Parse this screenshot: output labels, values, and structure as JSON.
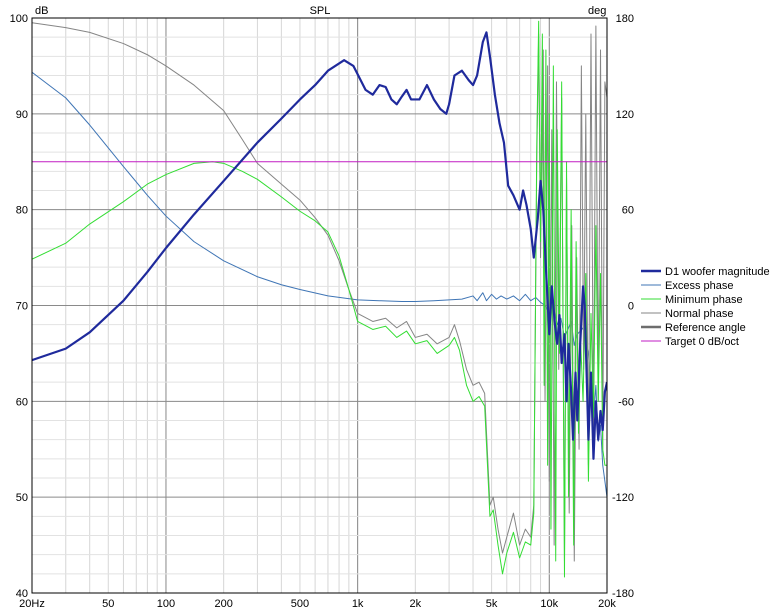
{
  "chart_data": {
    "type": "line",
    "title": "SPL",
    "ylabel_left": "dB",
    "ylabel_right": "deg",
    "x_scale": "log",
    "xlim": [
      20,
      20000
    ],
    "ylim_left": [
      40,
      100
    ],
    "ylim_right": [
      -180,
      180
    ],
    "grid": true,
    "legend_position": "right",
    "x_ticks": [
      {
        "v": 20,
        "label": "20Hz"
      },
      {
        "v": 50,
        "label": "50"
      },
      {
        "v": 100,
        "label": "100"
      },
      {
        "v": 200,
        "label": "200"
      },
      {
        "v": 500,
        "label": "500"
      },
      {
        "v": 1000,
        "label": "1k"
      },
      {
        "v": 2000,
        "label": "2k"
      },
      {
        "v": 5000,
        "label": "5k"
      },
      {
        "v": 10000,
        "label": "10k"
      },
      {
        "v": 20000,
        "label": "20k"
      }
    ],
    "y_ticks_left": [
      {
        "v": 40,
        "label": "40"
      },
      {
        "v": 50,
        "label": "50"
      },
      {
        "v": 60,
        "label": "60"
      },
      {
        "v": 70,
        "label": "70"
      },
      {
        "v": 80,
        "label": "80"
      },
      {
        "v": 90,
        "label": "90"
      },
      {
        "v": 100,
        "label": "100"
      }
    ],
    "y_ticks_right": [
      {
        "v": -180,
        "label": "-180"
      },
      {
        "v": -120,
        "label": "-120"
      },
      {
        "v": -60,
        "label": "-60"
      },
      {
        "v": 0,
        "label": "0"
      },
      {
        "v": 60,
        "label": "60"
      },
      {
        "v": 120,
        "label": "120"
      },
      {
        "v": 180,
        "label": "180"
      }
    ],
    "series": [
      {
        "name": "D1 woofer magnitude",
        "axis": "left",
        "color": "#1f2a9c",
        "width": 2.2,
        "points": [
          [
            20,
            64.3
          ],
          [
            30,
            65.5
          ],
          [
            40,
            67.2
          ],
          [
            60,
            70.5
          ],
          [
            80,
            73.5
          ],
          [
            100,
            76
          ],
          [
            140,
            79.5
          ],
          [
            200,
            83
          ],
          [
            300,
            87
          ],
          [
            400,
            89.5
          ],
          [
            500,
            91.5
          ],
          [
            600,
            93
          ],
          [
            700,
            94.5
          ],
          [
            850,
            95.6
          ],
          [
            950,
            95
          ],
          [
            1100,
            92.5
          ],
          [
            1200,
            92
          ],
          [
            1300,
            93
          ],
          [
            1400,
            92.8
          ],
          [
            1500,
            91.5
          ],
          [
            1600,
            91
          ],
          [
            1700,
            91.8
          ],
          [
            1800,
            92.5
          ],
          [
            1900,
            91.5
          ],
          [
            2100,
            91.5
          ],
          [
            2300,
            93
          ],
          [
            2500,
            91.5
          ],
          [
            2700,
            90.5
          ],
          [
            2900,
            90
          ],
          [
            3000,
            91
          ],
          [
            3200,
            94
          ],
          [
            3500,
            94.5
          ],
          [
            3800,
            93.5
          ],
          [
            4000,
            93
          ],
          [
            4200,
            94
          ],
          [
            4500,
            97.5
          ],
          [
            4700,
            98.5
          ],
          [
            4900,
            96
          ],
          [
            5200,
            92
          ],
          [
            5500,
            89
          ],
          [
            5800,
            87
          ],
          [
            6100,
            82.5
          ],
          [
            6500,
            81.5
          ],
          [
            7000,
            80
          ],
          [
            7300,
            82
          ],
          [
            7600,
            80.5
          ],
          [
            8000,
            78
          ],
          [
            8300,
            75
          ],
          [
            8700,
            79
          ],
          [
            9000,
            83
          ],
          [
            9300,
            80
          ],
          [
            9600,
            74
          ],
          [
            10000,
            67
          ],
          [
            10300,
            72
          ],
          [
            10700,
            68
          ],
          [
            11000,
            66
          ],
          [
            11300,
            69
          ],
          [
            11600,
            64
          ],
          [
            12000,
            67
          ],
          [
            12300,
            60
          ],
          [
            12600,
            66
          ],
          [
            13000,
            61
          ],
          [
            13300,
            56
          ],
          [
            13700,
            63
          ],
          [
            14000,
            58
          ],
          [
            14500,
            66
          ],
          [
            15000,
            72
          ],
          [
            15300,
            70
          ],
          [
            15700,
            62
          ],
          [
            16000,
            56
          ],
          [
            16500,
            63
          ],
          [
            17000,
            54
          ],
          [
            17500,
            60
          ],
          [
            18000,
            56
          ],
          [
            18500,
            59
          ],
          [
            19000,
            57
          ],
          [
            19500,
            61
          ],
          [
            20000,
            62
          ]
        ]
      },
      {
        "name": "Excess phase",
        "axis": "right",
        "color": "#3f75b5",
        "width": 1,
        "points": [
          [
            20,
            146
          ],
          [
            30,
            130
          ],
          [
            40,
            113
          ],
          [
            60,
            87
          ],
          [
            80,
            69
          ],
          [
            100,
            56
          ],
          [
            140,
            40
          ],
          [
            200,
            28
          ],
          [
            300,
            18
          ],
          [
            400,
            13
          ],
          [
            500,
            10
          ],
          [
            700,
            6
          ],
          [
            1000,
            3.5
          ],
          [
            1300,
            3
          ],
          [
            1700,
            2.5
          ],
          [
            2000,
            2.5
          ],
          [
            2500,
            3
          ],
          [
            3000,
            3.5
          ],
          [
            3500,
            4
          ],
          [
            4000,
            6
          ],
          [
            4200,
            3
          ],
          [
            4500,
            8
          ],
          [
            4700,
            3
          ],
          [
            5000,
            7
          ],
          [
            5300,
            4
          ],
          [
            5600,
            6
          ],
          [
            6000,
            4
          ],
          [
            6500,
            6
          ],
          [
            7000,
            3
          ],
          [
            7500,
            7
          ],
          [
            8000,
            3
          ],
          [
            8500,
            5
          ],
          [
            9000,
            2
          ],
          [
            9500,
            0
          ],
          [
            10000,
            -6
          ],
          [
            10500,
            2
          ],
          [
            11000,
            -12
          ],
          [
            11500,
            -8
          ],
          [
            12000,
            -20
          ],
          [
            12500,
            -15
          ],
          [
            13000,
            -10
          ],
          [
            13500,
            -25
          ],
          [
            14000,
            -18
          ],
          [
            15000,
            -14
          ],
          [
            16000,
            -30
          ],
          [
            17000,
            -70
          ],
          [
            17500,
            -50
          ],
          [
            18000,
            -85
          ],
          [
            18500,
            -75
          ],
          [
            19000,
            -100
          ],
          [
            19500,
            -110
          ],
          [
            20000,
            -120
          ]
        ]
      },
      {
        "name": "Minimum phase",
        "axis": "right",
        "color": "#33dd33",
        "width": 1,
        "points": [
          [
            20,
            29
          ],
          [
            30,
            39
          ],
          [
            40,
            51
          ],
          [
            60,
            65
          ],
          [
            80,
            76
          ],
          [
            100,
            82
          ],
          [
            140,
            89
          ],
          [
            175,
            90
          ],
          [
            200,
            89
          ],
          [
            250,
            84
          ],
          [
            300,
            79
          ],
          [
            400,
            68
          ],
          [
            500,
            59
          ],
          [
            600,
            53
          ],
          [
            700,
            46
          ],
          [
            800,
            31
          ],
          [
            900,
            10
          ],
          [
            1000,
            -10
          ],
          [
            1200,
            -15
          ],
          [
            1400,
            -13
          ],
          [
            1600,
            -20
          ],
          [
            1800,
            -16
          ],
          [
            2000,
            -24
          ],
          [
            2300,
            -22
          ],
          [
            2600,
            -30
          ],
          [
            3000,
            -25
          ],
          [
            3200,
            -20
          ],
          [
            3400,
            -28
          ],
          [
            3700,
            -50
          ],
          [
            4000,
            -60
          ],
          [
            4300,
            -57
          ],
          [
            4600,
            -63
          ],
          [
            4900,
            -132
          ],
          [
            5100,
            -128
          ],
          [
            5400,
            -150
          ],
          [
            5700,
            -168
          ],
          [
            6000,
            -155
          ],
          [
            6500,
            -142
          ],
          [
            7000,
            -158
          ],
          [
            7500,
            -148
          ],
          [
            8000,
            -150
          ],
          [
            8300,
            -130
          ],
          [
            8600,
            100
          ],
          [
            8800,
            178
          ],
          [
            9000,
            40
          ],
          [
            9200,
            170
          ],
          [
            9400,
            -50
          ],
          [
            9600,
            160
          ],
          [
            9800,
            -100
          ],
          [
            10000,
            120
          ],
          [
            10200,
            -140
          ],
          [
            10500,
            150
          ],
          [
            10800,
            -160
          ],
          [
            11000,
            110
          ],
          [
            11300,
            -30
          ],
          [
            11600,
            140
          ],
          [
            12000,
            -170
          ],
          [
            12300,
            90
          ],
          [
            12600,
            -120
          ],
          [
            13000,
            60
          ],
          [
            13400,
            -150
          ],
          [
            13800,
            40
          ],
          [
            14200,
            -80
          ],
          [
            14600,
            -25
          ],
          [
            15000,
            -60
          ],
          [
            15500,
            20
          ],
          [
            16000,
            -110
          ],
          [
            16500,
            -5
          ],
          [
            17000,
            -70
          ],
          [
            17500,
            50
          ],
          [
            18000,
            -60
          ],
          [
            18500,
            20
          ],
          [
            19000,
            -90
          ],
          [
            19500,
            -100
          ],
          [
            20000,
            -100
          ]
        ]
      },
      {
        "name": "Normal phase",
        "axis": "right",
        "color": "#858585",
        "width": 1,
        "points": [
          [
            20,
            177
          ],
          [
            30,
            174
          ],
          [
            40,
            171
          ],
          [
            60,
            164
          ],
          [
            80,
            157
          ],
          [
            100,
            150
          ],
          [
            140,
            138
          ],
          [
            200,
            122
          ],
          [
            250,
            104
          ],
          [
            300,
            89
          ],
          [
            400,
            76
          ],
          [
            500,
            66
          ],
          [
            600,
            55
          ],
          [
            700,
            44
          ],
          [
            800,
            28
          ],
          [
            900,
            10
          ],
          [
            1000,
            -5
          ],
          [
            1200,
            -10
          ],
          [
            1400,
            -8
          ],
          [
            1600,
            -14
          ],
          [
            1800,
            -10
          ],
          [
            2000,
            -20
          ],
          [
            2300,
            -18
          ],
          [
            2600,
            -24
          ],
          [
            3000,
            -20
          ],
          [
            3200,
            -12
          ],
          [
            3400,
            -22
          ],
          [
            3700,
            -40
          ],
          [
            4000,
            -50
          ],
          [
            4300,
            -48
          ],
          [
            4600,
            -55
          ],
          [
            4900,
            -125
          ],
          [
            5100,
            -120
          ],
          [
            5400,
            -140
          ],
          [
            5700,
            -155
          ],
          [
            6000,
            -145
          ],
          [
            6500,
            -130
          ],
          [
            7000,
            -150
          ],
          [
            7500,
            -140
          ],
          [
            8000,
            -145
          ],
          [
            8300,
            -125
          ],
          [
            8600,
            90
          ],
          [
            8800,
            170
          ],
          [
            9000,
            30
          ],
          [
            9300,
            160
          ],
          [
            9500,
            -60
          ],
          [
            9800,
            150
          ],
          [
            10000,
            -110
          ],
          [
            10300,
            110
          ],
          [
            10600,
            -150
          ],
          [
            10900,
            140
          ],
          [
            11200,
            -40
          ],
          [
            11600,
            130
          ],
          [
            12000,
            -160
          ],
          [
            12300,
            80
          ],
          [
            12700,
            -130
          ],
          [
            13100,
            50
          ],
          [
            13500,
            -160
          ],
          [
            13900,
            30
          ],
          [
            14300,
            -90
          ],
          [
            14700,
            150
          ],
          [
            15100,
            -40
          ],
          [
            15500,
            120
          ],
          [
            16000,
            -100
          ],
          [
            16500,
            170
          ],
          [
            17000,
            -80
          ],
          [
            17500,
            175
          ],
          [
            18000,
            -60
          ],
          [
            18500,
            160
          ],
          [
            19000,
            -90
          ],
          [
            19500,
            140
          ],
          [
            20000,
            130
          ]
        ]
      },
      {
        "name": "Reference angle",
        "axis": "right",
        "color": "#6d6d6d",
        "width": 2.2,
        "points": []
      },
      {
        "name": "Target 0 dB/oct",
        "axis": "left",
        "color": "#c21dc4",
        "width": 1,
        "points": [
          [
            20,
            85
          ],
          [
            20000,
            85
          ]
        ]
      }
    ]
  }
}
